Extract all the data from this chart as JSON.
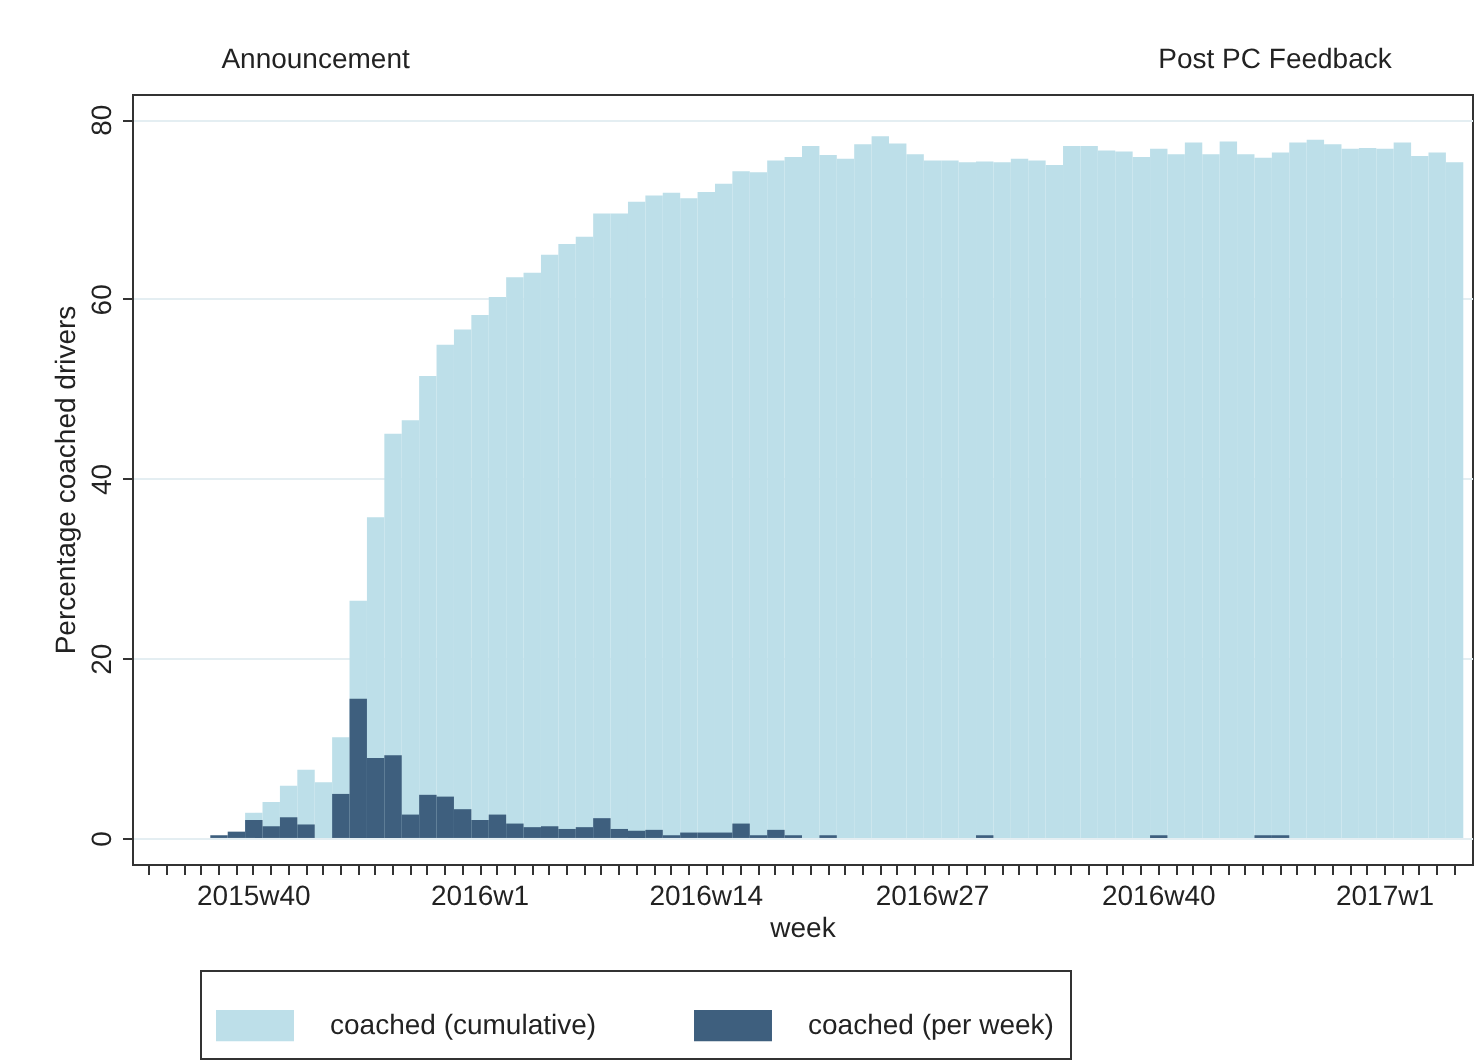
{
  "chart_data": {
    "type": "bar",
    "xlabel": "week",
    "ylabel": "Percentage coached drivers",
    "categories": [
      null,
      null,
      null,
      null,
      null,
      null,
      "2015w40",
      null,
      null,
      null,
      null,
      null,
      null,
      null,
      null,
      null,
      null,
      null,
      null,
      "2016w1",
      null,
      null,
      null,
      null,
      null,
      null,
      null,
      null,
      null,
      null,
      null,
      null,
      "2016w14",
      null,
      null,
      null,
      null,
      null,
      null,
      null,
      null,
      null,
      null,
      null,
      null,
      "2016w27",
      null,
      null,
      null,
      null,
      null,
      null,
      null,
      null,
      null,
      null,
      null,
      null,
      "2016w40",
      null,
      null,
      null,
      null,
      null,
      null,
      null,
      null,
      null,
      null,
      null,
      null,
      "2017w1",
      null,
      null,
      null,
      null
    ],
    "series": [
      {
        "name": "coached (cumulative)",
        "color": "#bddfe9",
        "values": [
          null,
          null,
          null,
          null,
          null,
          null,
          2.8,
          4.0,
          5.8,
          7.6,
          6.2,
          11.2,
          26.4,
          35.7,
          45.0,
          46.5,
          51.4,
          54.9,
          56.6,
          58.2,
          60.2,
          62.4,
          62.9,
          64.9,
          66.1,
          66.9,
          69.5,
          69.5,
          70.8,
          71.5,
          71.8,
          71.2,
          71.9,
          72.8,
          74.2,
          74.1,
          75.4,
          75.8,
          77.0,
          76.0,
          75.6,
          77.2,
          78.1,
          77.3,
          76.1,
          75.4,
          75.4,
          75.2,
          75.3,
          75.2,
          75.6,
          75.4,
          74.9,
          77.0,
          77.0,
          76.5,
          76.4,
          75.8,
          76.7,
          76.1,
          77.4,
          76.1,
          77.5,
          76.1,
          75.7,
          76.3,
          77.4,
          77.7,
          77.2,
          76.7,
          76.8,
          76.7,
          77.4,
          75.9,
          76.3,
          75.2
        ]
      },
      {
        "name": "coached (per week)",
        "color": "#3e5f7e",
        "values": [
          null,
          null,
          null,
          null,
          0.3,
          0.7,
          2.0,
          1.3,
          2.3,
          1.5,
          0,
          4.9,
          15.5,
          8.9,
          9.2,
          2.6,
          4.8,
          4.6,
          3.2,
          2.0,
          2.6,
          1.6,
          1.2,
          1.3,
          1.0,
          1.2,
          2.2,
          1.0,
          0.8,
          0.9,
          0.3,
          0.6,
          0.6,
          0.6,
          1.6,
          0.3,
          0.9,
          0.3,
          0,
          0.3,
          0,
          0,
          0,
          0,
          0,
          0,
          0,
          0,
          0.3,
          0,
          0,
          0,
          0,
          0,
          0,
          0,
          0,
          0,
          0.3,
          0,
          0,
          0,
          0,
          0,
          0.3,
          0.3,
          0,
          0,
          0,
          0,
          0,
          0,
          0,
          0,
          0,
          0
        ]
      }
    ],
    "annotations": [
      "Announcement",
      "Post PC Feedback"
    ],
    "ylim": [
      -2.9,
      82.8
    ],
    "yticks": [
      0,
      20,
      40,
      60,
      80
    ],
    "grid": "y",
    "legend": "bottom"
  }
}
